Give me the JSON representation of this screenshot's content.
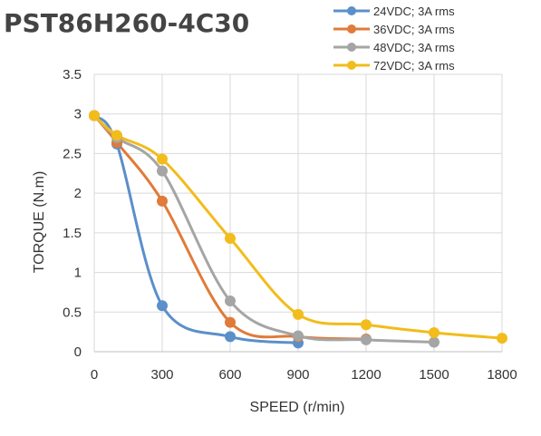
{
  "chart_data": {
    "type": "line",
    "title": "PST86H260-4C30",
    "xlabel": "SPEED (r/min)",
    "ylabel": "TORQUE (N.m)",
    "xlim": [
      0,
      1800
    ],
    "ylim": [
      0,
      3.5
    ],
    "xticks": [
      "0",
      "300",
      "600",
      "900",
      "1200",
      "1500",
      "1800"
    ],
    "yticks": [
      "0",
      "0.5",
      "1",
      "1.5",
      "2",
      "2.5",
      "3",
      "3.5"
    ],
    "grid": true,
    "legend_position": "top-right",
    "series": [
      {
        "name": "24VDC; 3A rms",
        "color": "#5B8FC9",
        "x": [
          0,
          100,
          300,
          600,
          900
        ],
        "y": [
          2.98,
          2.62,
          0.58,
          0.19,
          0.11
        ]
      },
      {
        "name": "36VDC; 3A rms",
        "color": "#E07B39",
        "x": [
          0,
          100,
          300,
          600,
          900,
          1200
        ],
        "y": [
          2.98,
          2.64,
          1.9,
          0.37,
          0.19,
          0.16
        ]
      },
      {
        "name": "48VDC; 3A rms",
        "color": "#A5A5A5",
        "x": [
          0,
          100,
          300,
          600,
          900,
          1200,
          1500
        ],
        "y": [
          2.98,
          2.7,
          2.28,
          0.64,
          0.2,
          0.15,
          0.12
        ]
      },
      {
        "name": "72VDC; 3A rms",
        "color": "#F2BC1B",
        "x": [
          0,
          100,
          300,
          600,
          900,
          1200,
          1500,
          1800
        ],
        "y": [
          2.98,
          2.73,
          2.43,
          1.43,
          0.47,
          0.34,
          0.24,
          0.17
        ]
      }
    ]
  }
}
